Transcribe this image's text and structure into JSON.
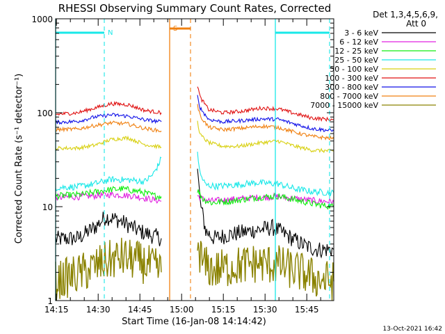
{
  "chart_data": {
    "type": "line",
    "title": "RHESSI Observing Summary Count Rates, Corrected",
    "xlabel": "Start Time (16-Jan-08 14:14:42)",
    "ylabel": "Corrected Count Rate (s⁻¹ detector⁻¹)",
    "y_scale": "log",
    "ylim": [
      1,
      1000
    ],
    "xlim_minutes_since_14_14_42": [
      0,
      100
    ],
    "x_tick_labels": [
      "14:15",
      "14:30",
      "14:45",
      "15:00",
      "15:15",
      "15:30",
      "15:45"
    ],
    "x_tick_minutes": [
      0.3,
      15.3,
      30.3,
      45.3,
      60.3,
      75.3,
      90.3
    ],
    "y_tick_labels": [
      "1",
      "10",
      "100",
      "1000"
    ],
    "y_tick_values": [
      1,
      10,
      100,
      1000
    ],
    "legend_header": [
      "Det 1,3,4,5,6,9,",
      "Att 0"
    ],
    "legend_position": "right",
    "series": [
      {
        "name": "3 - 6 keV",
        "color": "#000000",
        "segments": [
          {
            "x": [
              0,
              8,
              14,
              18,
              22,
              26,
              30,
              34,
              38
            ],
            "y": [
              4.5,
              4.6,
              6.0,
              7.8,
              7.3,
              6.4,
              5.5,
              5.0,
              4.6
            ]
          },
          {
            "x": [
              51,
              52,
              54,
              57,
              62,
              70,
              78,
              82,
              86,
              90,
              94,
              100
            ],
            "y": [
              25,
              11,
              5.5,
              4.6,
              5.0,
              5.5,
              6.0,
              5.2,
              4.4,
              3.8,
              3.5,
              3.5
            ]
          }
        ]
      },
      {
        "name": "6 - 12 keV",
        "color": "#e020e0",
        "segments": [
          {
            "x": [
              0,
              10,
              20,
              28,
              34,
              38
            ],
            "y": [
              12.5,
              12.8,
              13.5,
              13.0,
              12.0,
              11.5
            ]
          },
          {
            "x": [
              51,
              53,
              56,
              64,
              72,
              80,
              88,
              94,
              100
            ],
            "y": [
              13,
              12,
              11.5,
              12,
              12.5,
              12.8,
              12,
              11.5,
              11.3
            ]
          }
        ]
      },
      {
        "name": "12 - 25 keV",
        "color": "#10ee10",
        "segments": [
          {
            "x": [
              0,
              10,
              18,
              24,
              30,
              36,
              38
            ],
            "y": [
              13,
              13.5,
              15,
              15.5,
              14.5,
              13,
              12.8
            ]
          },
          {
            "x": [
              51,
              53,
              56,
              64,
              72,
              80,
              88,
              94,
              100
            ],
            "y": [
              15,
              12,
              11,
              11.5,
              12.5,
              13,
              11.5,
              10.5,
              10
            ]
          }
        ]
      },
      {
        "name": "25 - 50 keV",
        "color": "#18e8e8",
        "segments": [
          {
            "x": [
              0,
              8,
              14,
              20,
              26,
              32,
              35,
              37,
              38
            ],
            "y": [
              16,
              16.3,
              17.5,
              19.5,
              19.3,
              18.5,
              22,
              28,
              33
            ]
          },
          {
            "x": [
              51,
              52,
              54,
              58,
              64,
              72,
              80,
              86,
              92,
              100
            ],
            "y": [
              38,
              22,
              17,
              16.5,
              17,
              18,
              17.5,
              15.5,
              14.5,
              14
            ]
          }
        ]
      },
      {
        "name": "50 - 100 keV",
        "color": "#d8d010",
        "segments": [
          {
            "x": [
              0,
              8,
              14,
              20,
              26,
              32,
              38
            ],
            "y": [
              42,
              42,
              45,
              52,
              54,
              46,
              43
            ]
          },
          {
            "x": [
              51,
              52,
              55,
              60,
              66,
              74,
              80,
              86,
              92,
              100
            ],
            "y": [
              80,
              58,
              48,
              44,
              44,
              48,
              50,
              44,
              40,
              39
            ]
          }
        ]
      },
      {
        "name": "100 - 300 keV",
        "color": "#e01010",
        "segments": [
          {
            "x": [
              0,
              8,
              14,
              20,
              26,
              32,
              38
            ],
            "y": [
              96,
              100,
              112,
              125,
              122,
              106,
              100
            ]
          },
          {
            "x": [
              51,
              52,
              55,
              60,
              66,
              74,
              80,
              86,
              92,
              100
            ],
            "y": [
              195,
              145,
              108,
              100,
              103,
              112,
              110,
              98,
              88,
              84
            ]
          }
        ]
      },
      {
        "name": "300 - 800 keV",
        "color": "#1010e8",
        "segments": [
          {
            "x": [
              0,
              8,
              14,
              20,
              26,
              32,
              38
            ],
            "y": [
              79,
              81,
              90,
              95,
              92,
              84,
              80
            ]
          },
          {
            "x": [
              51,
              52,
              55,
              60,
              66,
              74,
              80,
              86,
              92,
              100
            ],
            "y": [
              150,
              112,
              85,
              80,
              82,
              86,
              85,
              76,
              68,
              64
            ]
          }
        ]
      },
      {
        "name": "800 - 7000 keV",
        "color": "#f08010",
        "segments": [
          {
            "x": [
              0,
              8,
              14,
              20,
              26,
              32,
              38
            ],
            "y": [
              66,
              67,
              73,
              78,
              76,
              68,
              64
            ]
          },
          {
            "x": [
              51,
              52,
              55,
              60,
              66,
              74,
              80,
              86,
              92,
              100
            ],
            "y": [
              120,
              92,
              70,
              66,
              68,
              72,
              70,
              62,
              56,
              53
            ]
          }
        ]
      },
      {
        "name": "7000 - 15000 keV",
        "color": "#8a8200",
        "segments": [
          {
            "x": [
              0,
              10,
              18,
              24,
              30,
              36,
              38
            ],
            "y": [
              1.6,
              2.0,
              2.6,
              2.9,
              2.6,
              2.2,
              2.0
            ]
          },
          {
            "x": [
              51,
              53,
              57,
              64,
              72,
              80,
              88,
              94,
              100
            ],
            "y": [
              4,
              2.4,
              2.1,
              2.3,
              2.5,
              2.4,
              2.0,
              1.7,
              1.6
            ]
          }
        ]
      }
    ],
    "annotations": [
      {
        "label": "N",
        "color": "#18e8e8",
        "bar_x": [
          0,
          17.5
        ],
        "vlines_solid": [
          0
        ],
        "vlines_dashed": [
          17.5
        ]
      },
      {
        "label": "",
        "color": "#18e8e8",
        "bar_x": [
          79,
          98.5
        ],
        "vlines_solid": [
          79
        ],
        "vlines_dashed": [
          98.5
        ]
      },
      {
        "label": "S",
        "color": "#f08010",
        "bar_x": [
          41,
          48.5
        ],
        "vlines_solid": [
          41
        ],
        "vlines_dashed": [
          48.5
        ]
      }
    ]
  },
  "footer_date": "13-Oct-2021 16:42"
}
